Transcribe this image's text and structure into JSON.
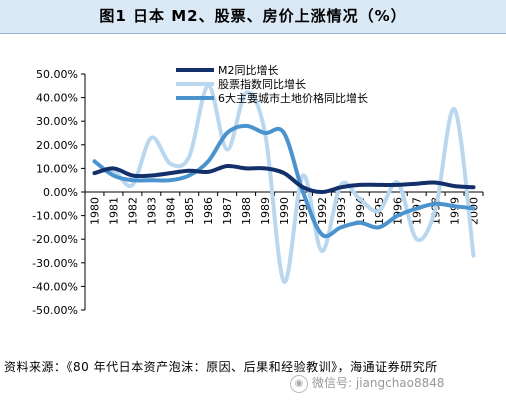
{
  "figure": {
    "title": "图1  日本 M2、股票、房价上涨情况（%）",
    "source": "资料来源：《80 年代日本资产泡沫：原因、后果和经验教训》，海通证券研究所",
    "watermark": "微信号: jiangchao8848"
  },
  "colors": {
    "m2": "#13306b",
    "stock": "#b9d7ef",
    "land": "#4b93cf",
    "header_bg": "#dbe8f5"
  },
  "chart_data": {
    "type": "line",
    "title": "图1  日本 M2、股票、房价上涨情况（%）",
    "xlabel": "",
    "ylabel": "",
    "ylim": [
      -50,
      50
    ],
    "yticks": [
      -50,
      -40,
      -30,
      -20,
      -10,
      0,
      10,
      20,
      30,
      40,
      50
    ],
    "ytick_labels": [
      "-50.00%",
      "-40.00%",
      "-30.00%",
      "-20.00%",
      "-10.00%",
      "0.00%",
      "10.00%",
      "20.00%",
      "30.00%",
      "40.00%",
      "50.00%"
    ],
    "categories": [
      "1980",
      "1981",
      "1982",
      "1983",
      "1984",
      "1985",
      "1986",
      "1987",
      "1988",
      "1989",
      "1990",
      "1991",
      "1992",
      "1993",
      "1994",
      "1995",
      "1996",
      "1997",
      "1998",
      "1999",
      "2000"
    ],
    "legend_position": "top",
    "grid": false,
    "series": [
      {
        "name": "M2同比增长",
        "color": "#13306b",
        "values": [
          8,
          10,
          7,
          7,
          8,
          9,
          8.5,
          11,
          10,
          10,
          8,
          2,
          0,
          2,
          3,
          3,
          3,
          3.5,
          4,
          2.5,
          2
        ]
      },
      {
        "name": "股票指数同比增长",
        "color": "#b9d7ef",
        "values": [
          8,
          9,
          3,
          23,
          12,
          15,
          45,
          18,
          42,
          25,
          -38,
          7,
          -25,
          3,
          -3,
          -8,
          4,
          -20,
          -7,
          35,
          -27
        ]
      },
      {
        "name": "6大主要城市土地价格同比增长",
        "color": "#4b93cf",
        "values": [
          13,
          7,
          5,
          5,
          5,
          7,
          13,
          25,
          28,
          25,
          25,
          0,
          -18,
          -15,
          -13,
          -15,
          -10,
          -7,
          -5,
          -6,
          -7
        ]
      }
    ]
  }
}
